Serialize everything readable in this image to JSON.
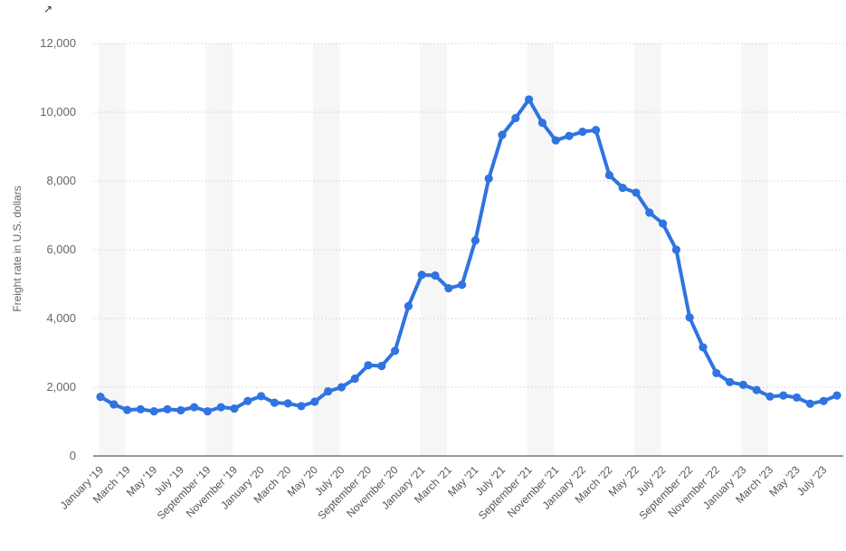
{
  "corner_mark": "↗",
  "chart_data": {
    "type": "line",
    "ylabel": "Freight rate in U.S. dollars",
    "ylim": [
      0,
      12000
    ],
    "yticks": [
      0,
      2000,
      4000,
      6000,
      8000,
      10000,
      12000
    ],
    "ytick_labels": [
      "0",
      "2,000",
      "4,000",
      "6,000",
      "8,000",
      "10,000",
      "12,000"
    ],
    "xtick_labels": [
      "January '19",
      "March '19",
      "May '19",
      "July '19",
      "September '19",
      "November '19",
      "January '20",
      "March '20",
      "May '20",
      "July '20",
      "September '20",
      "November '20",
      "January '21",
      "March '21",
      "May '21",
      "July '21",
      "September '21",
      "November '21",
      "January '22",
      "March '22",
      "May '22",
      "July '22",
      "September '22",
      "November '22",
      "January '23",
      "March '23",
      "May '23",
      "July '23"
    ],
    "grid": true,
    "line_color": "#2f74e0",
    "series": [
      {
        "values": [
          1720,
          1500,
          1340,
          1360,
          1300,
          1360,
          1330,
          1420,
          1300,
          1420,
          1380,
          1600,
          1740,
          1550,
          1530,
          1450,
          1580,
          1880,
          2000,
          2250,
          2640,
          2620,
          3060,
          4360,
          5270,
          5250,
          4880,
          4980,
          6270,
          8070,
          9340,
          9830,
          10370,
          9690,
          9180,
          9310,
          9430,
          9480,
          8170,
          7800,
          7660,
          7080,
          6760,
          6000,
          4030,
          3160,
          2410,
          2150,
          2070,
          1920,
          1730,
          1760,
          1700,
          1520,
          1600,
          1760
        ]
      }
    ]
  }
}
